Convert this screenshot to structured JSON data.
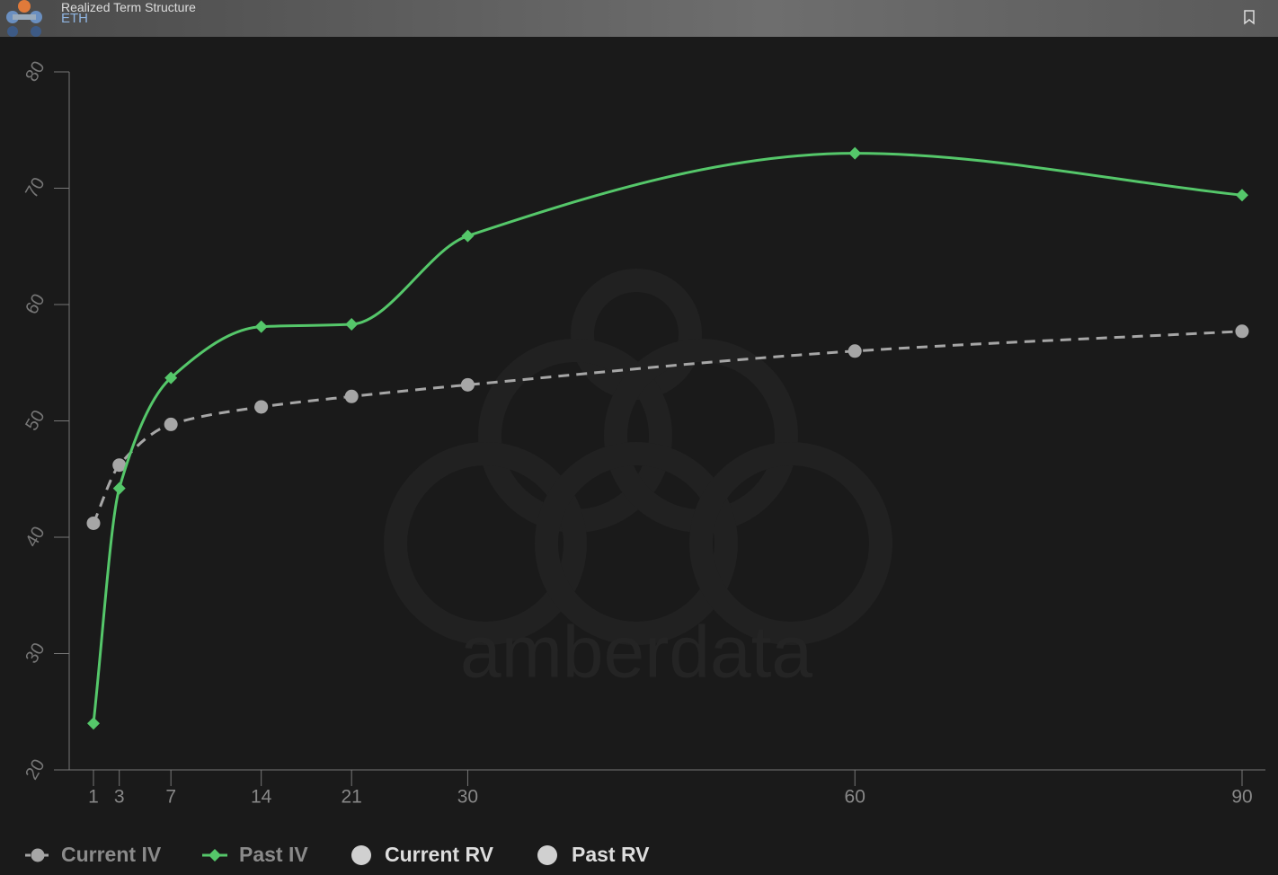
{
  "header": {
    "title": "Realized Term Structure",
    "subtitle": "ETH"
  },
  "chart_data": {
    "type": "line",
    "watermark": "amberdata",
    "x": [
      1,
      3,
      7,
      14,
      21,
      30,
      60,
      90
    ],
    "xlim": [
      1,
      90
    ],
    "xticks": [
      1,
      3,
      7,
      14,
      21,
      30,
      60,
      90
    ],
    "ylim": [
      20,
      80
    ],
    "yticks": [
      20,
      30,
      40,
      50,
      60,
      70,
      80
    ],
    "grid": false,
    "series": [
      {
        "name": "Current IV",
        "color": "#a6a6a6",
        "dashed": true,
        "marker": "circle",
        "values": [
          41.2,
          46.2,
          49.7,
          51.2,
          52.1,
          53.1,
          56.0,
          57.7
        ]
      },
      {
        "name": "Past IV",
        "color": "#55c76a",
        "dashed": false,
        "marker": "diamond",
        "values": [
          24.0,
          44.2,
          53.7,
          58.1,
          58.3,
          65.9,
          73.0,
          69.4
        ]
      },
      {
        "name": "Current RV",
        "color": "#d0d0d0",
        "dashed": false,
        "marker": "circle",
        "values": [
          null,
          null,
          null,
          null,
          null,
          null,
          null,
          null
        ]
      },
      {
        "name": "Past RV",
        "color": "#d0d0d0",
        "dashed": false,
        "marker": "circle",
        "values": [
          null,
          null,
          null,
          null,
          null,
          null,
          null,
          null
        ]
      }
    ]
  }
}
